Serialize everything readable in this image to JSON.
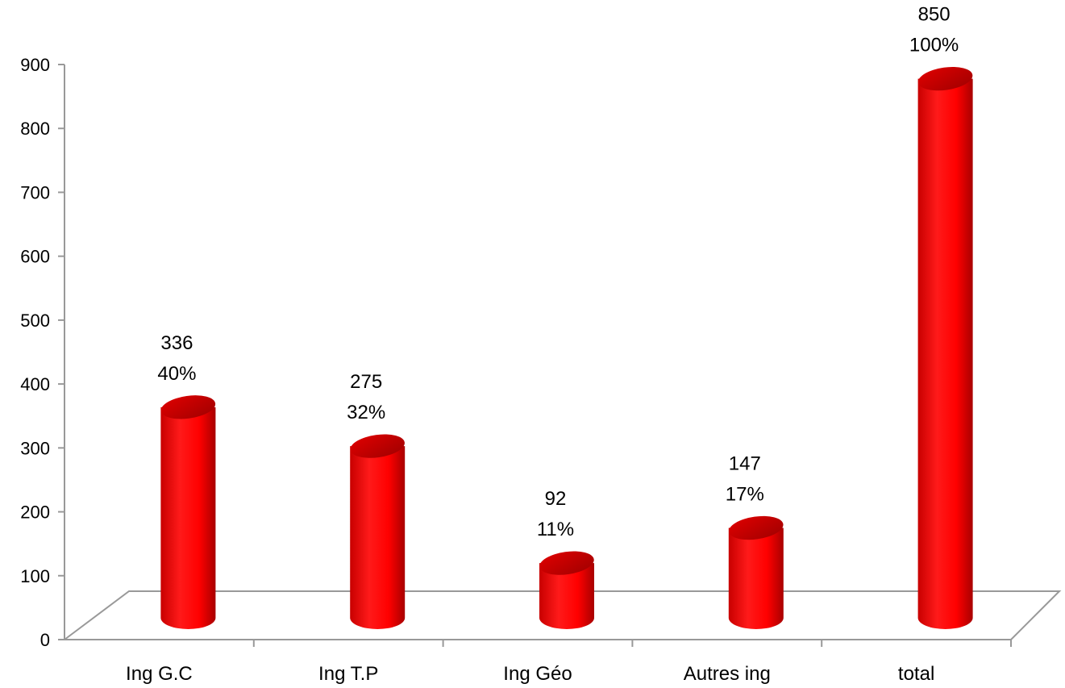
{
  "chart_data": {
    "type": "bar",
    "style": "3d-cylinder",
    "title": "",
    "xlabel": "",
    "ylabel": "",
    "categories": [
      "Ing G.C",
      "Ing T.P",
      "Ing Géo",
      "Autres ing",
      "total"
    ],
    "values": [
      336,
      275,
      92,
      147,
      850
    ],
    "percent_labels": [
      "40%",
      "32%",
      "11%",
      "17%",
      "100%"
    ],
    "ylim": [
      0,
      900
    ],
    "yticks": [
      "0",
      "100",
      "200",
      "300",
      "400",
      "500",
      "600",
      "700",
      "800",
      "900"
    ],
    "grid": false,
    "legend": "none",
    "colors": {
      "bar": "#ff0000",
      "bar_dark": "#b30000",
      "axis": "#999999"
    }
  }
}
